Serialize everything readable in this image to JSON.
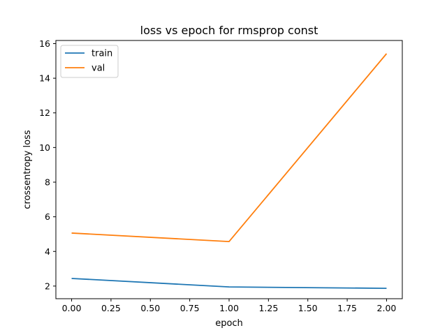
{
  "chart_data": {
    "type": "line",
    "title": "loss vs epoch for rmsprop const",
    "xlabel": "epoch",
    "ylabel": "crossentropy loss",
    "x": [
      0,
      1,
      2
    ],
    "xlim": [
      -0.1,
      2.1
    ],
    "ylim": [
      1.27,
      16.18
    ],
    "xticks": [
      0.0,
      0.25,
      0.5,
      0.75,
      1.0,
      1.25,
      1.5,
      1.75,
      2.0
    ],
    "xtick_labels": [
      "0.00",
      "0.25",
      "0.50",
      "0.75",
      "1.00",
      "1.25",
      "1.50",
      "1.75",
      "2.00"
    ],
    "yticks": [
      2,
      4,
      6,
      8,
      10,
      12,
      14,
      16
    ],
    "ytick_labels": [
      "2",
      "4",
      "6",
      "8",
      "10",
      "12",
      "14",
      "16"
    ],
    "grid": false,
    "legend_position": "top-left",
    "series": [
      {
        "name": "train",
        "color": "#1f77b4",
        "values": [
          2.44,
          1.95,
          1.87
        ]
      },
      {
        "name": "val",
        "color": "#ff7f0e",
        "values": [
          5.06,
          4.57,
          15.42
        ]
      }
    ]
  }
}
